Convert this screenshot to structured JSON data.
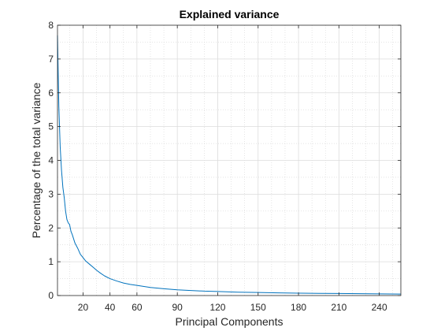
{
  "chart_data": {
    "type": "line",
    "title": "Explained variance",
    "xlabel": "Principal Components",
    "ylabel": "Percentage of the total variance",
    "xlim": [
      1,
      256
    ],
    "ylim": [
      0,
      8
    ],
    "xticks": [
      20,
      40,
      60,
      90,
      120,
      150,
      180,
      210,
      240
    ],
    "yticks": [
      0,
      1,
      2,
      3,
      4,
      5,
      6,
      7,
      8
    ],
    "x_minor_step": 10,
    "y_minor_step": 0.5,
    "grid": true,
    "minor_grid": true,
    "series": [
      {
        "name": "explained variance",
        "color": "#0072BD",
        "x": [
          1,
          2,
          3,
          4,
          5,
          6,
          7,
          8,
          9,
          10,
          11,
          12,
          14,
          16,
          18,
          20,
          22,
          25,
          28,
          30,
          33,
          36,
          40,
          45,
          50,
          55,
          60,
          70,
          80,
          90,
          100,
          110,
          120,
          135,
          150,
          165,
          180,
          195,
          210,
          225,
          240,
          256
        ],
        "y": [
          7.7,
          5.6,
          4.4,
          3.7,
          3.2,
          2.9,
          2.5,
          2.25,
          2.15,
          2.1,
          1.9,
          1.8,
          1.55,
          1.4,
          1.22,
          1.12,
          1.02,
          0.92,
          0.82,
          0.75,
          0.66,
          0.58,
          0.5,
          0.43,
          0.37,
          0.33,
          0.3,
          0.24,
          0.2,
          0.17,
          0.15,
          0.13,
          0.12,
          0.1,
          0.09,
          0.08,
          0.07,
          0.065,
          0.06,
          0.055,
          0.05,
          0.045
        ]
      }
    ]
  }
}
